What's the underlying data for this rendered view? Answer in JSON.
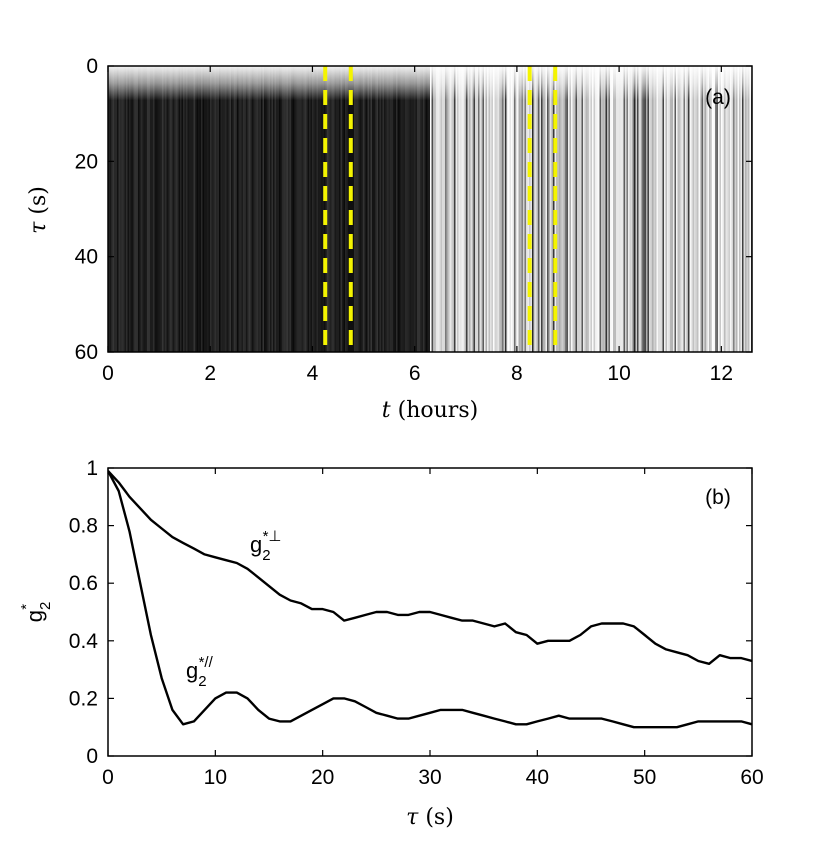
{
  "chart_data": [
    {
      "panel": "(a)",
      "type": "heatmap",
      "xlabel_var": "t",
      "xlabel_unit": "(hours)",
      "ylabel_var": "τ",
      "ylabel_unit": "(s)",
      "xlim": [
        0,
        12.6
      ],
      "ylim": [
        60,
        0
      ],
      "xticks": [
        0,
        2,
        4,
        6,
        8,
        10,
        12
      ],
      "yticks": [
        0,
        20,
        40,
        60
      ],
      "regions": [
        {
          "t_start": 0,
          "t_end": 6.3,
          "shade": "dark"
        },
        {
          "t_start": 6.3,
          "t_end": 12.6,
          "shade": "light"
        }
      ],
      "dashed_lines_t": [
        4.25,
        4.75,
        8.25,
        8.75
      ],
      "dashed_color": "#f4f400"
    },
    {
      "panel": "(b)",
      "type": "line",
      "xlabel_var": "τ",
      "xlabel_unit": "(s)",
      "ylabel": "g",
      "ylabel_sub": "2",
      "ylabel_sup": "*",
      "xlim": [
        0,
        60
      ],
      "ylim": [
        0,
        1
      ],
      "xticks": [
        0,
        10,
        20,
        30,
        40,
        50,
        60
      ],
      "yticks": [
        0,
        0.2,
        0.4,
        0.6,
        0.8,
        1
      ],
      "series": [
        {
          "name": "g2*⊥",
          "label_base": "g",
          "label_sub": "2",
          "label_sup": "*⊥",
          "x": [
            0,
            1,
            2,
            3,
            4,
            5,
            6,
            7,
            8,
            9,
            10,
            11,
            12,
            13,
            14,
            15,
            16,
            17,
            18,
            19,
            20,
            21,
            22,
            23,
            24,
            25,
            26,
            27,
            28,
            29,
            30,
            31,
            32,
            33,
            34,
            35,
            36,
            37,
            38,
            39,
            40,
            41,
            42,
            43,
            44,
            45,
            46,
            47,
            48,
            49,
            50,
            51,
            52,
            53,
            54,
            55,
            56,
            57,
            58,
            59,
            60
          ],
          "y": [
            0.99,
            0.95,
            0.9,
            0.86,
            0.82,
            0.79,
            0.76,
            0.74,
            0.72,
            0.7,
            0.69,
            0.68,
            0.67,
            0.65,
            0.62,
            0.59,
            0.56,
            0.54,
            0.53,
            0.51,
            0.51,
            0.5,
            0.47,
            0.48,
            0.49,
            0.5,
            0.5,
            0.49,
            0.49,
            0.5,
            0.5,
            0.49,
            0.48,
            0.47,
            0.47,
            0.46,
            0.45,
            0.46,
            0.43,
            0.42,
            0.39,
            0.4,
            0.4,
            0.4,
            0.42,
            0.45,
            0.46,
            0.46,
            0.46,
            0.45,
            0.42,
            0.39,
            0.37,
            0.36,
            0.35,
            0.33,
            0.32,
            0.35,
            0.34,
            0.34,
            0.33
          ]
        },
        {
          "name": "g2*//",
          "label_base": "g",
          "label_sub": "2",
          "label_sup": "*//",
          "x": [
            0,
            1,
            2,
            3,
            4,
            5,
            6,
            7,
            8,
            9,
            10,
            11,
            12,
            13,
            14,
            15,
            16,
            17,
            18,
            19,
            20,
            21,
            22,
            23,
            24,
            25,
            26,
            27,
            28,
            29,
            30,
            31,
            32,
            33,
            34,
            35,
            36,
            37,
            38,
            39,
            40,
            41,
            42,
            43,
            44,
            45,
            46,
            47,
            48,
            49,
            50,
            51,
            52,
            53,
            54,
            55,
            56,
            57,
            58,
            59,
            60
          ],
          "y": [
            0.99,
            0.92,
            0.78,
            0.6,
            0.42,
            0.27,
            0.16,
            0.11,
            0.12,
            0.16,
            0.2,
            0.22,
            0.22,
            0.2,
            0.16,
            0.13,
            0.12,
            0.12,
            0.14,
            0.16,
            0.18,
            0.2,
            0.2,
            0.19,
            0.17,
            0.15,
            0.14,
            0.13,
            0.13,
            0.14,
            0.15,
            0.16,
            0.16,
            0.16,
            0.15,
            0.14,
            0.13,
            0.12,
            0.11,
            0.11,
            0.12,
            0.13,
            0.14,
            0.13,
            0.13,
            0.13,
            0.13,
            0.12,
            0.11,
            0.1,
            0.1,
            0.1,
            0.1,
            0.1,
            0.11,
            0.12,
            0.12,
            0.12,
            0.12,
            0.12,
            0.11
          ]
        }
      ]
    }
  ]
}
